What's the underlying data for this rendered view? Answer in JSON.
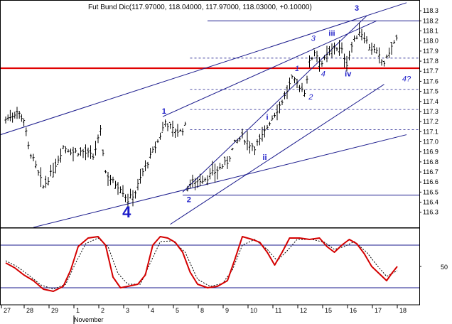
{
  "chart_data": {
    "type": "bar",
    "title": "Fut Bund Dic(117.97000, 118.04000, 117.97000, 118.03000, +0.10000)",
    "ohlc_last": {
      "open": 117.97,
      "high": 118.04,
      "low": 117.97,
      "close": 118.03,
      "change": 0.1
    },
    "ylim": [
      116.15,
      118.4
    ],
    "y_ticks": [
      "118.3",
      "118.2",
      "118.1",
      "118.0",
      "117.9",
      "117.8",
      "117.7",
      "117.6",
      "117.5",
      "117.4",
      "117.3",
      "117.2",
      "117.1",
      "117.0",
      "116.9",
      "116.8",
      "116.7",
      "116.6",
      "116.5",
      "116.4",
      "116.3"
    ],
    "x_labels": [
      "27",
      "28",
      "29",
      "1",
      "2",
      "3",
      "4",
      "5",
      "8",
      "9",
      "10",
      "11",
      "12",
      "15",
      "16",
      "17",
      "18"
    ],
    "month_label": "November",
    "close_path": [
      [
        0,
        117.22
      ],
      [
        0.5,
        117.3
      ],
      [
        0.8,
        117.22
      ],
      [
        1.0,
        116.95
      ],
      [
        1.3,
        116.75
      ],
      [
        1.6,
        116.55
      ],
      [
        2.0,
        116.72
      ],
      [
        2.4,
        116.95
      ],
      [
        2.8,
        116.9
      ],
      [
        3.2,
        116.9
      ],
      [
        3.6,
        116.85
      ],
      [
        3.9,
        117.1
      ],
      [
        4.1,
        116.7
      ],
      [
        4.4,
        116.6
      ],
      [
        4.7,
        116.55
      ],
      [
        5.0,
        116.42
      ],
      [
        5.3,
        116.5
      ],
      [
        5.6,
        116.7
      ],
      [
        5.9,
        116.85
      ],
      [
        6.2,
        117.0
      ],
      [
        6.5,
        117.2
      ],
      [
        6.8,
        117.12
      ],
      [
        7.1,
        117.1
      ],
      [
        7.3,
        117.15
      ],
      [
        7.35,
        116.55
      ],
      [
        7.6,
        116.6
      ],
      [
        7.9,
        116.62
      ],
      [
        8.2,
        116.65
      ],
      [
        8.6,
        116.72
      ],
      [
        9.0,
        116.8
      ],
      [
        9.3,
        116.98
      ],
      [
        9.6,
        117.05
      ],
      [
        9.9,
        116.98
      ],
      [
        10.1,
        116.95
      ],
      [
        10.4,
        117.05
      ],
      [
        10.7,
        117.2
      ],
      [
        11.0,
        117.32
      ],
      [
        11.3,
        117.45
      ],
      [
        11.6,
        117.62
      ],
      [
        11.9,
        117.55
      ],
      [
        12.1,
        117.5
      ],
      [
        12.3,
        117.78
      ],
      [
        12.5,
        117.9
      ],
      [
        12.8,
        117.78
      ],
      [
        13.0,
        117.85
      ],
      [
        13.3,
        117.95
      ],
      [
        13.6,
        117.9
      ],
      [
        13.8,
        117.78
      ],
      [
        14.0,
        117.95
      ],
      [
        14.3,
        118.1
      ],
      [
        14.5,
        118.05
      ],
      [
        14.7,
        117.95
      ],
      [
        15.0,
        117.88
      ],
      [
        15.2,
        117.8
      ],
      [
        15.35,
        117.78
      ],
      [
        15.5,
        117.9
      ],
      [
        15.7,
        117.98
      ],
      [
        15.83,
        118.03
      ]
    ],
    "horizontal_levels": [
      {
        "value": 117.73,
        "color": "#e00000",
        "style": "solid-thick"
      },
      {
        "value": 118.2,
        "color": "#1a1a8c",
        "style": "solid"
      },
      {
        "value": 117.83,
        "color": "#1a1a8c",
        "style": "dashed"
      },
      {
        "value": 117.52,
        "color": "#1a1a8c",
        "style": "dashed"
      },
      {
        "value": 117.32,
        "color": "#1a1a8c",
        "style": "dashed"
      },
      {
        "value": 117.12,
        "color": "#1a1a8c",
        "style": "dashed"
      },
      {
        "value": 116.47,
        "color": "#1a1a8c",
        "style": "solid"
      }
    ],
    "trend_lines": [
      {
        "from": [
          -0.5,
          117.05
        ],
        "to": [
          16.2,
          118.38
        ]
      },
      {
        "from": [
          6.4,
          117.25
        ],
        "to": [
          15.0,
          118.2
        ]
      },
      {
        "from": [
          1.2,
          116.15
        ],
        "to": [
          16.2,
          117.07
        ]
      },
      {
        "from": [
          6.7,
          116.18
        ],
        "to": [
          15.3,
          117.57
        ]
      },
      {
        "from": [
          7.2,
          116.5
        ],
        "to": [
          14.6,
          118.25
        ]
      }
    ],
    "wave_labels": [
      {
        "text": "4",
        "x": 4.95,
        "y": 116.25,
        "size": "big"
      },
      {
        "text": "1",
        "x": 6.45,
        "y": 117.28,
        "size": "bold"
      },
      {
        "text": "2",
        "x": 7.45,
        "y": 116.4,
        "size": "bold"
      },
      {
        "text": "i",
        "x": 10.6,
        "y": 117.22,
        "size": "bold"
      },
      {
        "text": "ii",
        "x": 10.5,
        "y": 116.82,
        "size": "bold"
      },
      {
        "text": "1",
        "x": 11.8,
        "y": 117.7,
        "size": "italic"
      },
      {
        "text": "2",
        "x": 12.35,
        "y": 117.42,
        "size": "italic"
      },
      {
        "text": "3",
        "x": 12.45,
        "y": 118.0,
        "size": "italic"
      },
      {
        "text": "4",
        "x": 12.85,
        "y": 117.65,
        "size": "italic"
      },
      {
        "text": "iii",
        "x": 13.2,
        "y": 118.05,
        "size": "bold"
      },
      {
        "text": "iv",
        "x": 13.85,
        "y": 117.65,
        "size": "bold"
      },
      {
        "text": "3",
        "x": 14.2,
        "y": 118.3,
        "size": "bold"
      },
      {
        "text": "4?",
        "x": 16.2,
        "y": 117.6,
        "size": "italic"
      }
    ],
    "oscillator": {
      "level_label": "50",
      "ylim": [
        0,
        100
      ],
      "upper_band": 80,
      "lower_band": 20,
      "k": [
        [
          0,
          55
        ],
        [
          0.4,
          48
        ],
        [
          0.8,
          38
        ],
        [
          1.2,
          30
        ],
        [
          1.6,
          18
        ],
        [
          2.0,
          15
        ],
        [
          2.4,
          22
        ],
        [
          2.7,
          45
        ],
        [
          3.0,
          78
        ],
        [
          3.4,
          90
        ],
        [
          3.8,
          92
        ],
        [
          4.1,
          80
        ],
        [
          4.4,
          35
        ],
        [
          4.7,
          20
        ],
        [
          5.0,
          22
        ],
        [
          5.4,
          25
        ],
        [
          5.7,
          38
        ],
        [
          6.0,
          80
        ],
        [
          6.3,
          92
        ],
        [
          6.6,
          90
        ],
        [
          6.9,
          84
        ],
        [
          7.2,
          70
        ],
        [
          7.5,
          42
        ],
        [
          7.8,
          25
        ],
        [
          8.2,
          20
        ],
        [
          8.6,
          22
        ],
        [
          9.0,
          30
        ],
        [
          9.3,
          60
        ],
        [
          9.6,
          92
        ],
        [
          10.0,
          88
        ],
        [
          10.3,
          84
        ],
        [
          10.6,
          70
        ],
        [
          10.9,
          52
        ],
        [
          11.2,
          70
        ],
        [
          11.5,
          90
        ],
        [
          11.9,
          90
        ],
        [
          12.3,
          88
        ],
        [
          12.7,
          90
        ],
        [
          13.0,
          78
        ],
        [
          13.3,
          70
        ],
        [
          13.6,
          80
        ],
        [
          13.9,
          88
        ],
        [
          14.2,
          82
        ],
        [
          14.5,
          68
        ],
        [
          14.8,
          50
        ],
        [
          15.1,
          40
        ],
        [
          15.4,
          30
        ],
        [
          15.6,
          40
        ],
        [
          15.83,
          50
        ]
      ],
      "d": [
        [
          0,
          58
        ],
        [
          0.5,
          50
        ],
        [
          1.0,
          38
        ],
        [
          1.5,
          24
        ],
        [
          2.0,
          18
        ],
        [
          2.5,
          25
        ],
        [
          2.9,
          55
        ],
        [
          3.3,
          82
        ],
        [
          3.8,
          90
        ],
        [
          4.2,
          78
        ],
        [
          4.6,
          40
        ],
        [
          5.0,
          25
        ],
        [
          5.5,
          25
        ],
        [
          5.9,
          55
        ],
        [
          6.3,
          85
        ],
        [
          6.8,
          86
        ],
        [
          7.3,
          70
        ],
        [
          7.8,
          32
        ],
        [
          8.3,
          22
        ],
        [
          8.8,
          26
        ],
        [
          9.2,
          45
        ],
        [
          9.6,
          80
        ],
        [
          10.1,
          88
        ],
        [
          10.6,
          74
        ],
        [
          11.0,
          58
        ],
        [
          11.4,
          72
        ],
        [
          11.8,
          88
        ],
        [
          12.4,
          88
        ],
        [
          12.9,
          84
        ],
        [
          13.3,
          74
        ],
        [
          13.7,
          78
        ],
        [
          14.1,
          85
        ],
        [
          14.6,
          70
        ],
        [
          15.0,
          52
        ],
        [
          15.4,
          36
        ],
        [
          15.83,
          44
        ]
      ]
    }
  }
}
